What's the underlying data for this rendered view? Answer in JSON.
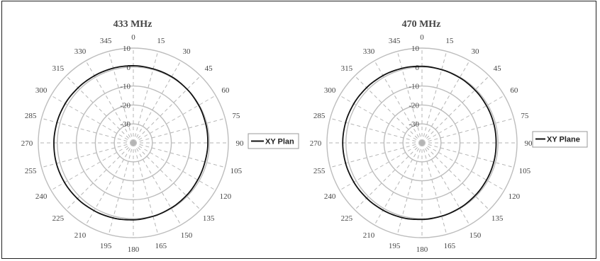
{
  "chart_data": [
    {
      "type": "polar-line",
      "title": "433 MHz",
      "angular_ticks": [
        0,
        15,
        30,
        45,
        60,
        75,
        90,
        105,
        120,
        135,
        150,
        165,
        180,
        195,
        210,
        225,
        240,
        255,
        270,
        285,
        300,
        315,
        330,
        345
      ],
      "radial_ticks": [
        10,
        0,
        -10,
        -20,
        -30
      ],
      "radial_range": [
        -40,
        10
      ],
      "grid": true,
      "legend": "right",
      "series": [
        {
          "name": "XY Plan",
          "color": "#111111",
          "angles": [
            0,
            15,
            30,
            45,
            60,
            75,
            90,
            105,
            120,
            135,
            150,
            165,
            180,
            195,
            210,
            225,
            240,
            255,
            270,
            285,
            300,
            315,
            330,
            345,
            360
          ],
          "values": [
            0.7,
            0.4,
            0.3,
            0.0,
            -0.3,
            -0.6,
            -0.8,
            -1.0,
            -0.9,
            -0.6,
            -0.3,
            0.1,
            0.6,
            1.0,
            1.3,
            1.6,
            1.8,
            1.9,
            1.8,
            1.6,
            1.4,
            1.1,
            0.9,
            0.8,
            0.7
          ]
        }
      ]
    },
    {
      "type": "polar-line",
      "title": "470 MHz",
      "angular_ticks": [
        0,
        15,
        30,
        45,
        60,
        75,
        90,
        105,
        120,
        135,
        150,
        165,
        180,
        195,
        210,
        225,
        240,
        255,
        270,
        285,
        300,
        315,
        330,
        345
      ],
      "radial_ticks": [
        10,
        0,
        -10,
        -20,
        -30
      ],
      "radial_range": [
        -40,
        10
      ],
      "grid": true,
      "legend": "right",
      "series": [
        {
          "name": "XY Plane",
          "color": "#111111",
          "angles": [
            0,
            15,
            30,
            45,
            60,
            75,
            90,
            105,
            120,
            135,
            150,
            165,
            180,
            195,
            210,
            225,
            240,
            255,
            270,
            285,
            300,
            315,
            330,
            345,
            360
          ],
          "values": [
            0.4,
            0.0,
            -0.3,
            -0.6,
            -0.8,
            -0.9,
            -1.0,
            -0.9,
            -0.8,
            -0.6,
            -0.3,
            0.0,
            0.4,
            0.8,
            1.0,
            1.2,
            1.4,
            1.6,
            1.7,
            1.6,
            1.4,
            1.2,
            1.0,
            0.7,
            0.4
          ]
        }
      ]
    }
  ]
}
